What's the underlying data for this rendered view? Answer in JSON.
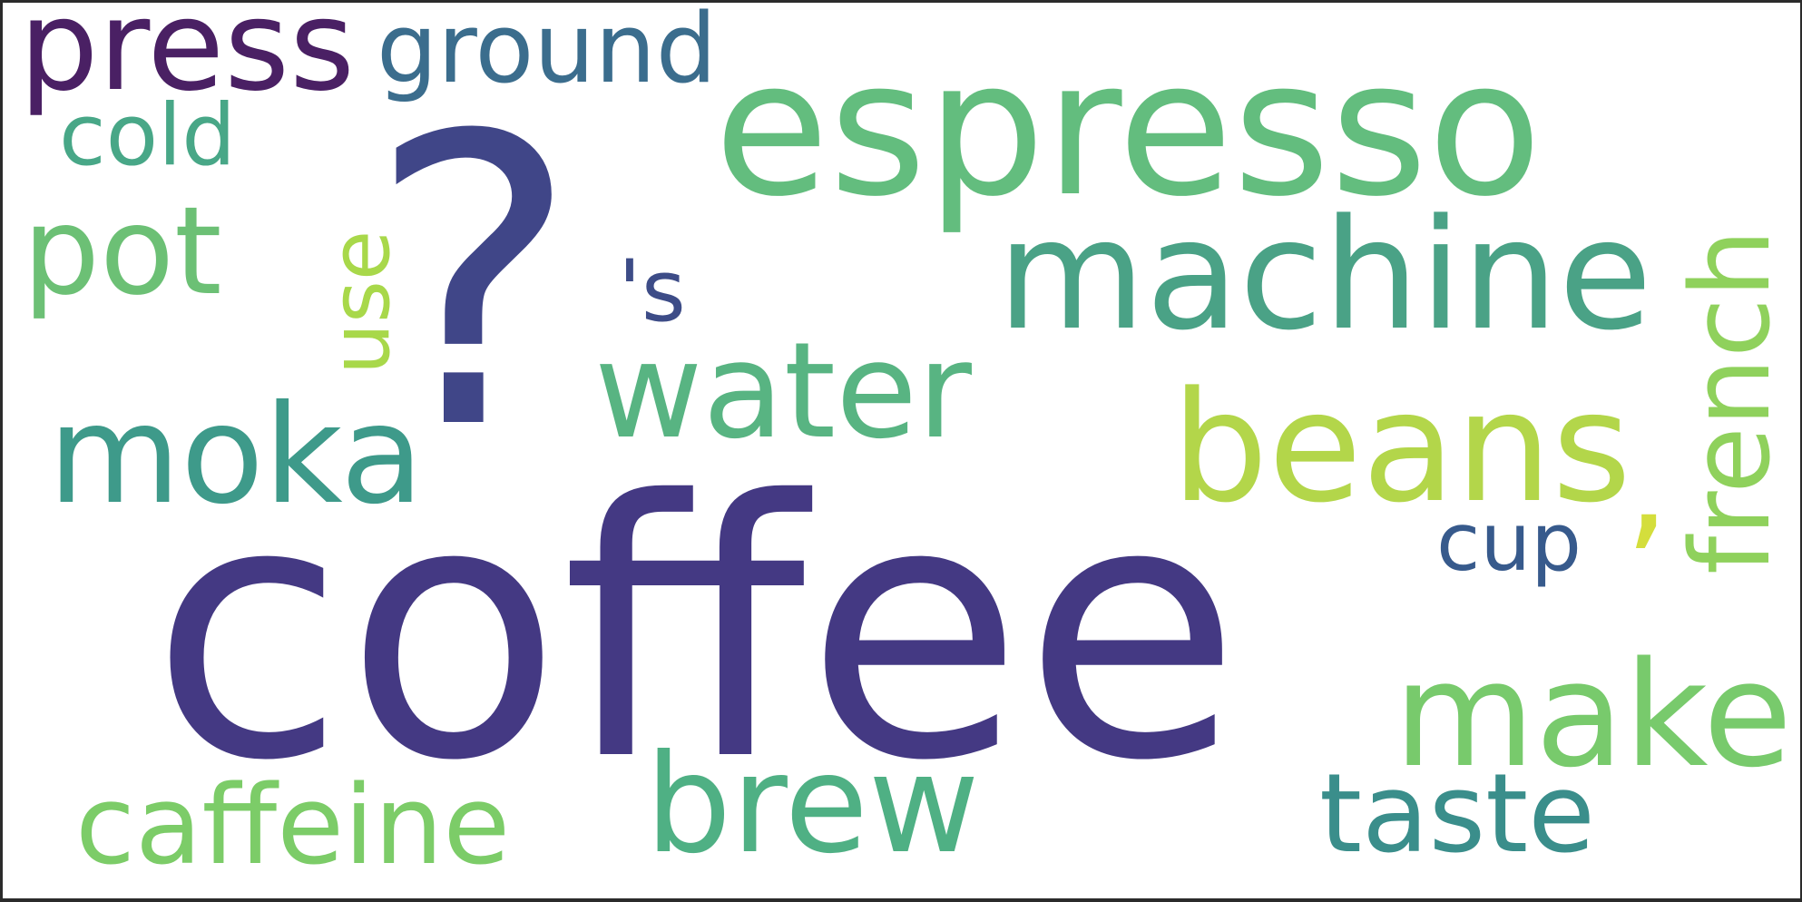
{
  "words": [
    {
      "text": "coffee",
      "color": "#443983"
    },
    {
      "text": "?",
      "color": "#404688"
    },
    {
      "text": "espresso",
      "color": "#63bd7e"
    },
    {
      "text": "machine",
      "color": "#4aa286"
    },
    {
      "text": "beans",
      "color": "#b3d64a"
    },
    {
      "text": "make",
      "color": "#78ca6c"
    },
    {
      "text": "water",
      "color": "#58b482"
    },
    {
      "text": "brew",
      "color": "#4fb084"
    },
    {
      "text": "moka",
      "color": "#3e9a8a"
    },
    {
      "text": "press",
      "color": "#4a2064"
    },
    {
      "text": "pot",
      "color": "#6cc075"
    },
    {
      "text": "caffeine",
      "color": "#7ccc68"
    },
    {
      "text": "taste",
      "color": "#3a8e8b"
    },
    {
      "text": "french",
      "color": "#8fd15c"
    },
    {
      "text": "ground",
      "color": "#3b6d8d"
    },
    {
      "text": "cold",
      "color": "#48a787"
    },
    {
      "text": "'s",
      "color": "#3d4c87"
    },
    {
      "text": "use",
      "color": "#a8d84a"
    },
    {
      "text": "cup",
      "color": "#375a8c"
    },
    {
      "text": ",",
      "color": "#d4de3c"
    }
  ]
}
